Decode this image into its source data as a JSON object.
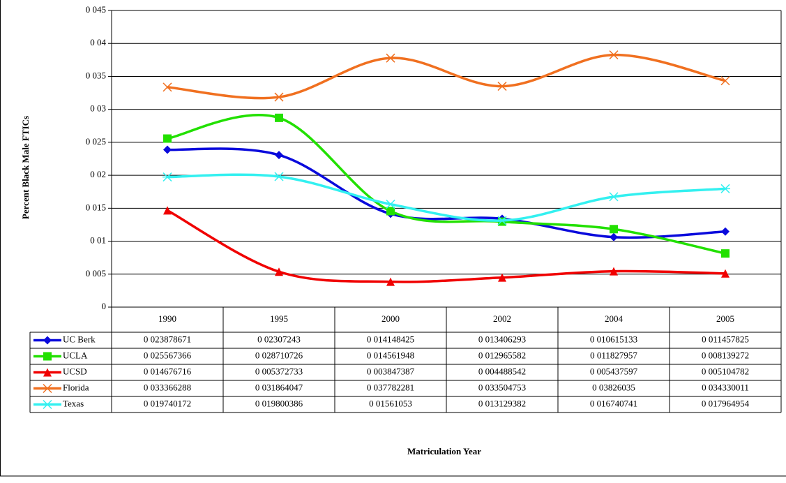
{
  "chart_data": {
    "type": "line",
    "y_label": "Percent Black Male FTICs",
    "x_label": "Matriculation Year",
    "categories": [
      "1990",
      "1995",
      "2000",
      "2002",
      "2004",
      "2005"
    ],
    "ylim": [
      0,
      0.045
    ],
    "yticks": [
      0,
      {
        "value": 0.005,
        "label": "0 005"
      },
      {
        "value": 0.01,
        "label": "0 01"
      },
      {
        "value": 0.015,
        "label": "0 015"
      },
      {
        "value": 0.02,
        "label": "0 02"
      },
      {
        "value": 0.025,
        "label": "0 025"
      },
      {
        "value": 0.03,
        "label": "0 03"
      },
      {
        "value": 0.035,
        "label": "0 035"
      },
      {
        "value": 0.04,
        "label": "0 04"
      },
      {
        "value": 0.045,
        "label": "0 045"
      }
    ],
    "grid": true,
    "smooth": true,
    "series": [
      {
        "name": "UC Berk",
        "color": "#0a0adc",
        "marker": "diamond",
        "values": [
          0.023878671,
          0.02307243,
          0.014148425,
          0.013406293,
          0.010615133,
          0.011457825
        ],
        "value_labels": [
          "0 023878671",
          "0 02307243",
          "0 014148425",
          "0 013406293",
          "0 010615133",
          "0 011457825"
        ]
      },
      {
        "name": "UCLA",
        "color": "#22e000",
        "marker": "square",
        "values": [
          0.025567366,
          0.028710726,
          0.014561948,
          0.012965582,
          0.011827957,
          0.008139272
        ],
        "value_labels": [
          "0 025567366",
          "0 028710726",
          "0 014561948",
          "0 012965582",
          "0 011827957",
          "0 008139272"
        ]
      },
      {
        "name": "UCSD",
        "color": "#f00000",
        "marker": "triangle",
        "values": [
          0.014676716,
          0.005372733,
          0.003847387,
          0.004488542,
          0.005437597,
          0.005104782
        ],
        "value_labels": [
          "0 014676716",
          "0 005372733",
          "0 003847387",
          "0 004488542",
          "0 005437597",
          "0 005104782"
        ]
      },
      {
        "name": "Florida",
        "color": "#f07020",
        "marker": "x",
        "values": [
          0.033366288,
          0.031864047,
          0.037782281,
          0.033504753,
          0.03826035,
          0.034330011
        ],
        "value_labels": [
          "0 033366288",
          "0 031864047",
          "0 037782281",
          "0 033504753",
          "0 03826035",
          "0 034330011"
        ]
      },
      {
        "name": "Texas",
        "color": "#33f0f0",
        "marker": "star",
        "values": [
          0.019740172,
          0.019800386,
          0.01561053,
          0.013129382,
          0.016740741,
          0.017964954
        ],
        "value_labels": [
          "0 019740172",
          "0 019800386",
          "0 01561053",
          "0 013129382",
          "0 016740741",
          "0 017964954"
        ]
      }
    ]
  }
}
